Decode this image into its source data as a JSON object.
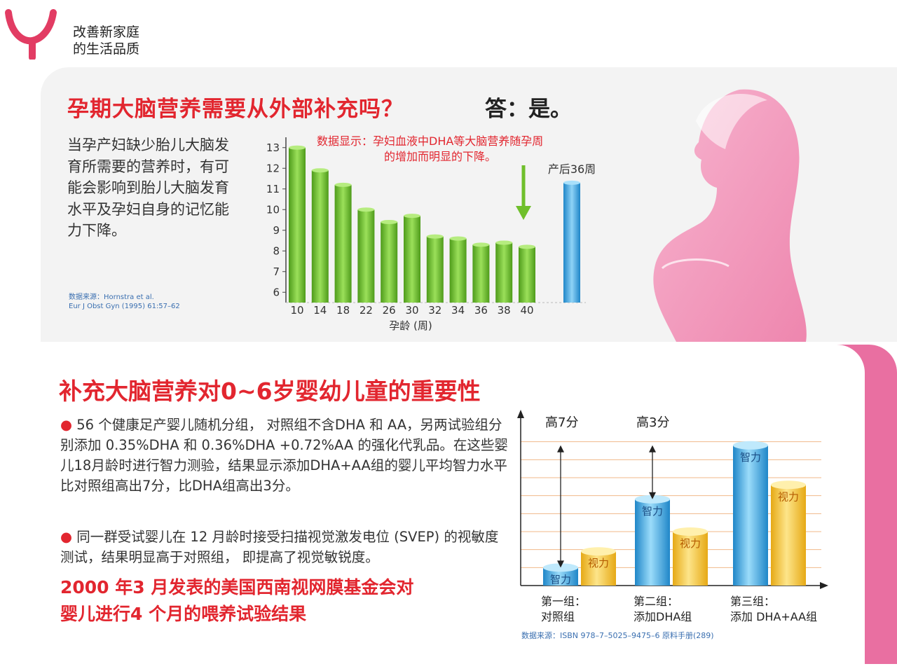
{
  "brand": {
    "slogan_line1": "改善新家庭",
    "slogan_line2": "的生活品质",
    "color": "#e23c63"
  },
  "section1": {
    "question": "孕期大脑营养需要从外部补充吗？",
    "answer": "答：是。",
    "description": "当孕产妇缺少胎儿大脑发育所需要的营养时，有可能会影响到胎儿大脑发育水平及孕妇自身的记忆能力下降。",
    "source_line1": "数据来源：Hornstra et al.",
    "source_line2": "Eur J Obst Gyn (1995) 61:57–62"
  },
  "chart_data": [
    {
      "type": "bar",
      "annotation_line1": "数据显示：孕妇血液中DHA等大脑营养随孕周",
      "annotation_line2": "的增加而明显的下降。",
      "categories": [
        "10",
        "14",
        "18",
        "22",
        "26",
        "30",
        "32",
        "34",
        "36",
        "38",
        "40"
      ],
      "values": [
        13.0,
        11.9,
        11.2,
        10.0,
        9.4,
        9.7,
        8.7,
        8.6,
        8.3,
        8.4,
        8.2
      ],
      "postpartum_label": "产后36周",
      "postpartum_value": 11.3,
      "xlabel": "孕龄 (周)",
      "yticks": [
        "13",
        "12",
        "11",
        "10",
        "9",
        "8",
        "7",
        "6"
      ],
      "ylim": [
        5.5,
        13.5
      ],
      "colors": {
        "green": "#6fbf2b",
        "blue": "#3fa7e0"
      }
    },
    {
      "type": "bar",
      "groups": [
        {
          "label_line1": "第一组：",
          "label_line2": "对照组",
          "intel_label": "智力",
          "vision_label": "视力",
          "intel": 1.0,
          "vision": 1.9
        },
        {
          "label_line1": "第二组：",
          "label_line2": "添加DHA组",
          "intel_label": "智力",
          "vision_label": "视力",
          "intel": 4.8,
          "vision": 3.0
        },
        {
          "label_line1": "第三组：",
          "label_line2": "添加 DHA+AA组",
          "intel_label": "智力",
          "vision_label": "视力",
          "intel": 7.8,
          "vision": 5.6
        }
      ],
      "diff_label_1": "高7分",
      "diff_label_2": "高3分",
      "ylim": [
        0,
        9
      ],
      "colors": {
        "intel": "#3fa7e0",
        "vision": "#f2c22c",
        "grid": "#f0b889"
      }
    }
  ],
  "section2": {
    "title": "补充大脑营养对0~6岁婴幼儿童的重要性",
    "bullet_dot": "●",
    "bullet1": " 56 个健康足产婴儿随机分组， 对照组不含DHA 和 AA，另两试验组分别添加 0.35%DHA 和 0.36%DHA +0.72%AA 的强化代乳品。在这些婴儿18月龄时进行智力测验，结果显示添加DHA+AA组的婴儿平均智力水平比对照组高出7分，比DHA组高出3分。",
    "bullet2": " 同一群受试婴儿在 12 月龄时接受扫描视觉激发电位 (SVEP) 的视敏度测试，结果明显高于对照组， 即提高了视觉敏锐度。",
    "note_line1": "2000 年3 月发表的美国西南视网膜基金会对",
    "note_line2": "婴儿进行4 个月的喂养试验结果",
    "source": "数据来源：ISBN 978–7–5025–9475–6 原料手册(289)"
  }
}
